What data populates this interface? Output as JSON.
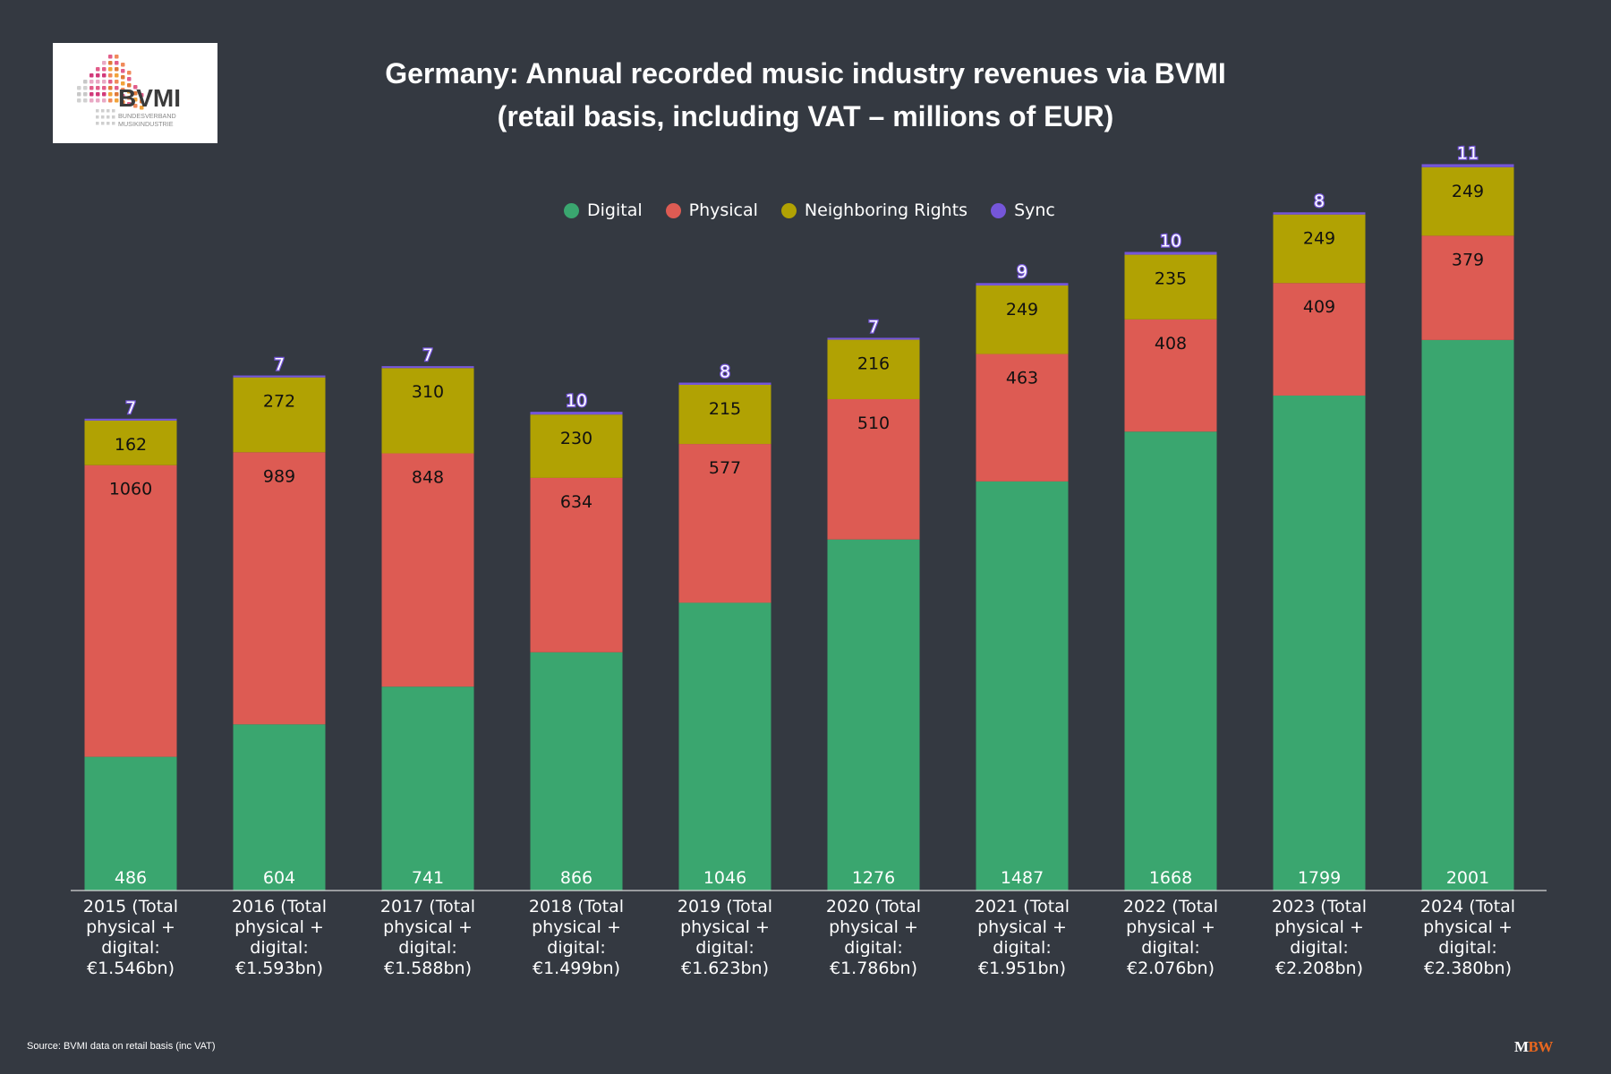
{
  "logo": {
    "brand": "BVMI",
    "line1": "BUNDESVERBAND",
    "line2": "MUSIKINDUSTRIE"
  },
  "title": {
    "line1": "Germany: Annual recorded music industry revenues via BVMI",
    "line2": "(retail basis, including VAT – millions of EUR)"
  },
  "source": "Source: BVMI data on retail basis (inc VAT)",
  "credit": {
    "m": "M",
    "bw": "BW"
  },
  "colors": {
    "Digital": "#3aa66f",
    "Physical": "#dd5b53",
    "Neighboring Rights": "#b1a203",
    "Sync": "#7556d9",
    "background": "#343941"
  },
  "chart_data": {
    "type": "bar",
    "stacked": true,
    "categories": [
      [
        "2015 (Total",
        "physical +",
        "digital:",
        "€1.546bn)"
      ],
      [
        "2016 (Total",
        "physical +",
        "digital:",
        "€1.593bn)"
      ],
      [
        "2017 (Total",
        "physical +",
        "digital:",
        "€1.588bn)"
      ],
      [
        "2018 (Total",
        "physical +",
        "digital:",
        "€1.499bn)"
      ],
      [
        "2019 (Total",
        "physical +",
        "digital:",
        "€1.623bn)"
      ],
      [
        "2020 (Total",
        "physical +",
        "digital:",
        "€1.786bn)"
      ],
      [
        "2021 (Total",
        "physical +",
        "digital:",
        "€1.951bn)"
      ],
      [
        "2022 (Total",
        "physical +",
        "digital:",
        "€2.076bn)"
      ],
      [
        "2023 (Total",
        "physical +",
        "digital:",
        "€2.208bn)"
      ],
      [
        "2024 (Total",
        "physical +",
        "digital:",
        "€2.380bn)"
      ]
    ],
    "series": [
      {
        "name": "Digital",
        "values": [
          486,
          604,
          741,
          866,
          1046,
          1276,
          1487,
          1668,
          1799,
          2001
        ]
      },
      {
        "name": "Physical",
        "values": [
          1060,
          989,
          848,
          634,
          577,
          510,
          463,
          408,
          409,
          379
        ]
      },
      {
        "name": "Neighboring Rights",
        "values": [
          162,
          272,
          310,
          230,
          215,
          216,
          249,
          235,
          249,
          249
        ]
      },
      {
        "name": "Sync",
        "values": [
          7,
          7,
          7,
          10,
          8,
          7,
          9,
          10,
          8,
          11
        ]
      }
    ],
    "legend_position": "top-center",
    "grid": false,
    "ylim": [
      0,
      2700
    ]
  }
}
